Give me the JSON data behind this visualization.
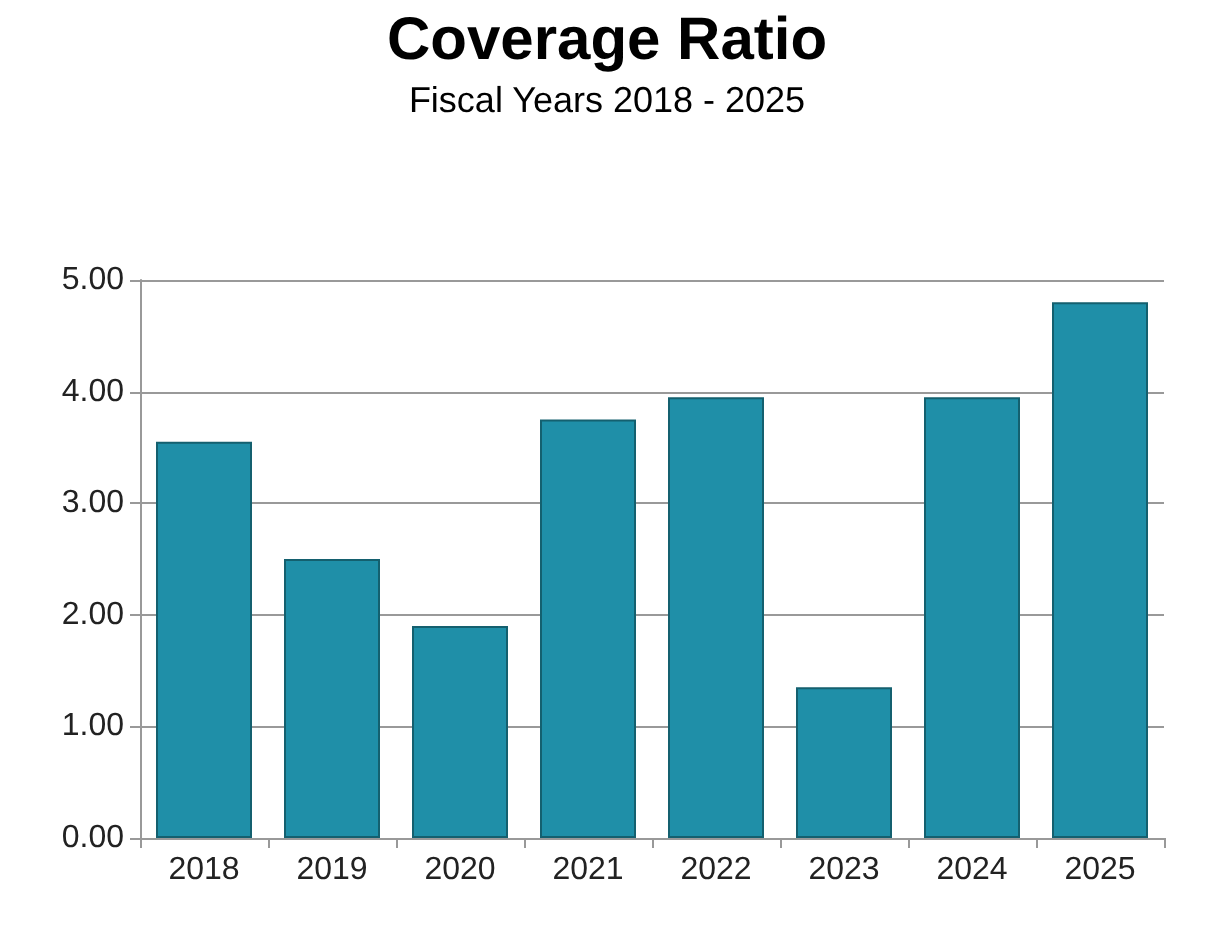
{
  "chart_data": {
    "type": "bar",
    "title": "Coverage Ratio",
    "subtitle": "Fiscal Years 2018 - 2025",
    "categories": [
      "2018",
      "2019",
      "2020",
      "2021",
      "2022",
      "2023",
      "2024",
      "2025"
    ],
    "values": [
      3.55,
      2.5,
      1.9,
      3.75,
      3.95,
      1.35,
      3.95,
      4.8
    ],
    "color": "#1f8fa8",
    "ylim": [
      0,
      5
    ],
    "yticks": [
      {
        "value": 0,
        "label": "0.00"
      },
      {
        "value": 1,
        "label": "1.00"
      },
      {
        "value": 2,
        "label": "2.00"
      },
      {
        "value": 3,
        "label": "3.00"
      },
      {
        "value": 4,
        "label": "4.00"
      },
      {
        "value": 5,
        "label": "5.00"
      }
    ],
    "grid": true
  }
}
